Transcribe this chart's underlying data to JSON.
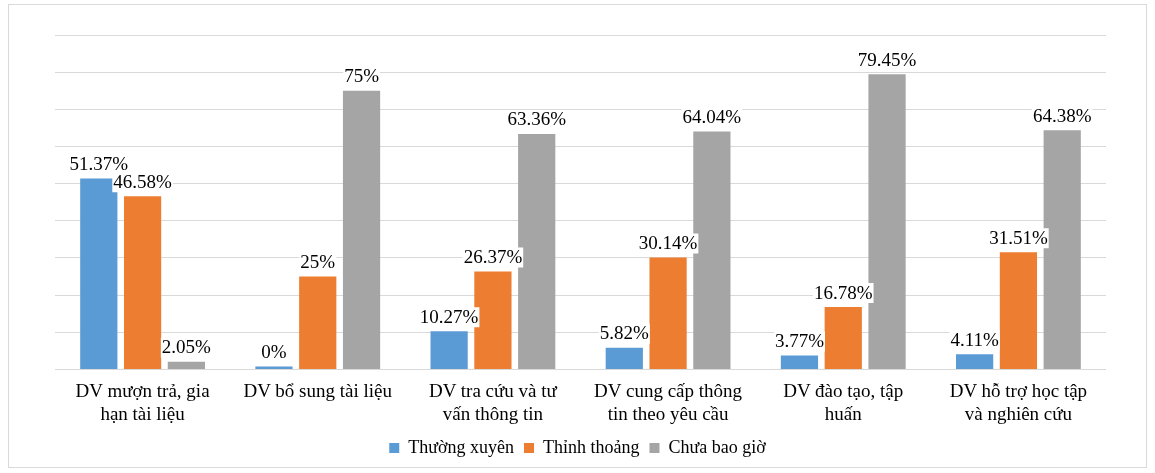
{
  "chart_data": {
    "type": "bar",
    "categories": [
      "DV mượn trả, gia hạn tài liệu",
      "DV bổ sung tài liệu",
      "DV tra cứu và tư vấn thông tin",
      "DV cung cấp thông tin theo yêu cầu",
      "DV đào tạo, tập huấn",
      "DV hỗ trợ học tập và nghiên cứu"
    ],
    "series": [
      {
        "name": "Thường xuyên",
        "color": "#5b9bd5",
        "values": [
          51.37,
          0,
          10.27,
          5.82,
          3.77,
          4.11
        ],
        "value_labels": [
          "51.37%",
          "0%",
          "10.27%",
          "5.82%",
          "3.77%",
          "4.11%"
        ]
      },
      {
        "name": "Thỉnh thoảng",
        "color": "#ed7d31",
        "values": [
          46.58,
          25,
          26.37,
          30.14,
          16.78,
          31.51
        ],
        "value_labels": [
          "46.58%",
          "25%",
          "26.37%",
          "30.14%",
          "16.78%",
          "31.51%"
        ]
      },
      {
        "name": "Chưa bao giờ",
        "color": "#a5a5a5",
        "values": [
          2.05,
          75,
          63.36,
          64.04,
          79.45,
          64.38
        ],
        "value_labels": [
          "2.05%",
          "75%",
          "63.36%",
          "64.04%",
          "79.45%",
          "64.38%"
        ]
      }
    ],
    "ylim": [
      0,
      90
    ],
    "yticks": [
      {
        "value": 0,
        "label": null
      },
      {
        "value": 10,
        "label": null
      },
      {
        "value": 20,
        "label": null
      },
      {
        "value": 30,
        "label": null
      },
      {
        "value": 40,
        "label": null
      },
      {
        "value": 50,
        "label": null
      },
      {
        "value": 60,
        "label": null
      },
      {
        "value": 70,
        "label": null
      },
      {
        "value": 80,
        "label": null
      },
      {
        "value": 90,
        "label": null
      }
    ],
    "grid": "y",
    "legend": "bottom"
  }
}
